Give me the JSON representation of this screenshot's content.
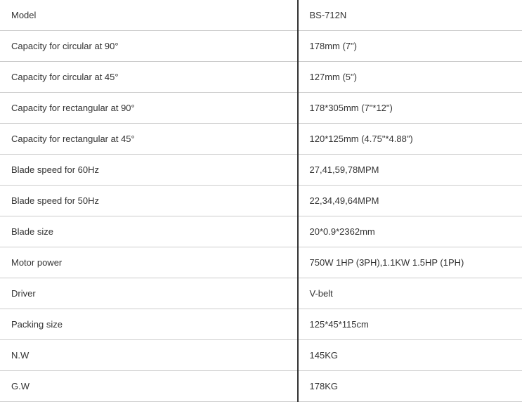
{
  "table": {
    "rows": [
      {
        "label": "Model",
        "value": "BS-712N"
      },
      {
        "label": "Capacity for circular at 90°",
        "value": "178mm (7\")"
      },
      {
        "label": "Capacity for circular at 45°",
        "value": "127mm (5\")"
      },
      {
        "label": "Capacity for rectangular at 90°",
        "value": "178*305mm (7\"*12\")"
      },
      {
        "label": "Capacity for rectangular at 45°",
        "value": "120*125mm (4.75\"*4.88\")"
      },
      {
        "label": "Blade speed for 60Hz",
        "value": "27,41,59,78MPM"
      },
      {
        "label": "Blade speed for 50Hz",
        "value": "22,34,49,64MPM"
      },
      {
        "label": "Blade size",
        "value": "20*0.9*2362mm"
      },
      {
        "label": "Motor power",
        "value": "750W 1HP (3PH),1.1KW 1.5HP (1PH)"
      },
      {
        "label": "Driver",
        "value": "V-belt"
      },
      {
        "label": "Packing size",
        "value": "125*45*115cm"
      },
      {
        "label": "N.W",
        "value": "145KG"
      },
      {
        "label": "G.W",
        "value": "178KG"
      }
    ],
    "styling": {
      "border_color": "#cccccc",
      "divider_color": "#333333",
      "text_color": "#333333",
      "background_color": "#ffffff",
      "font_size": 13,
      "label_column_width_pct": 57,
      "value_column_width_pct": 43,
      "cell_padding_v": 14,
      "cell_padding_h": 16
    }
  }
}
